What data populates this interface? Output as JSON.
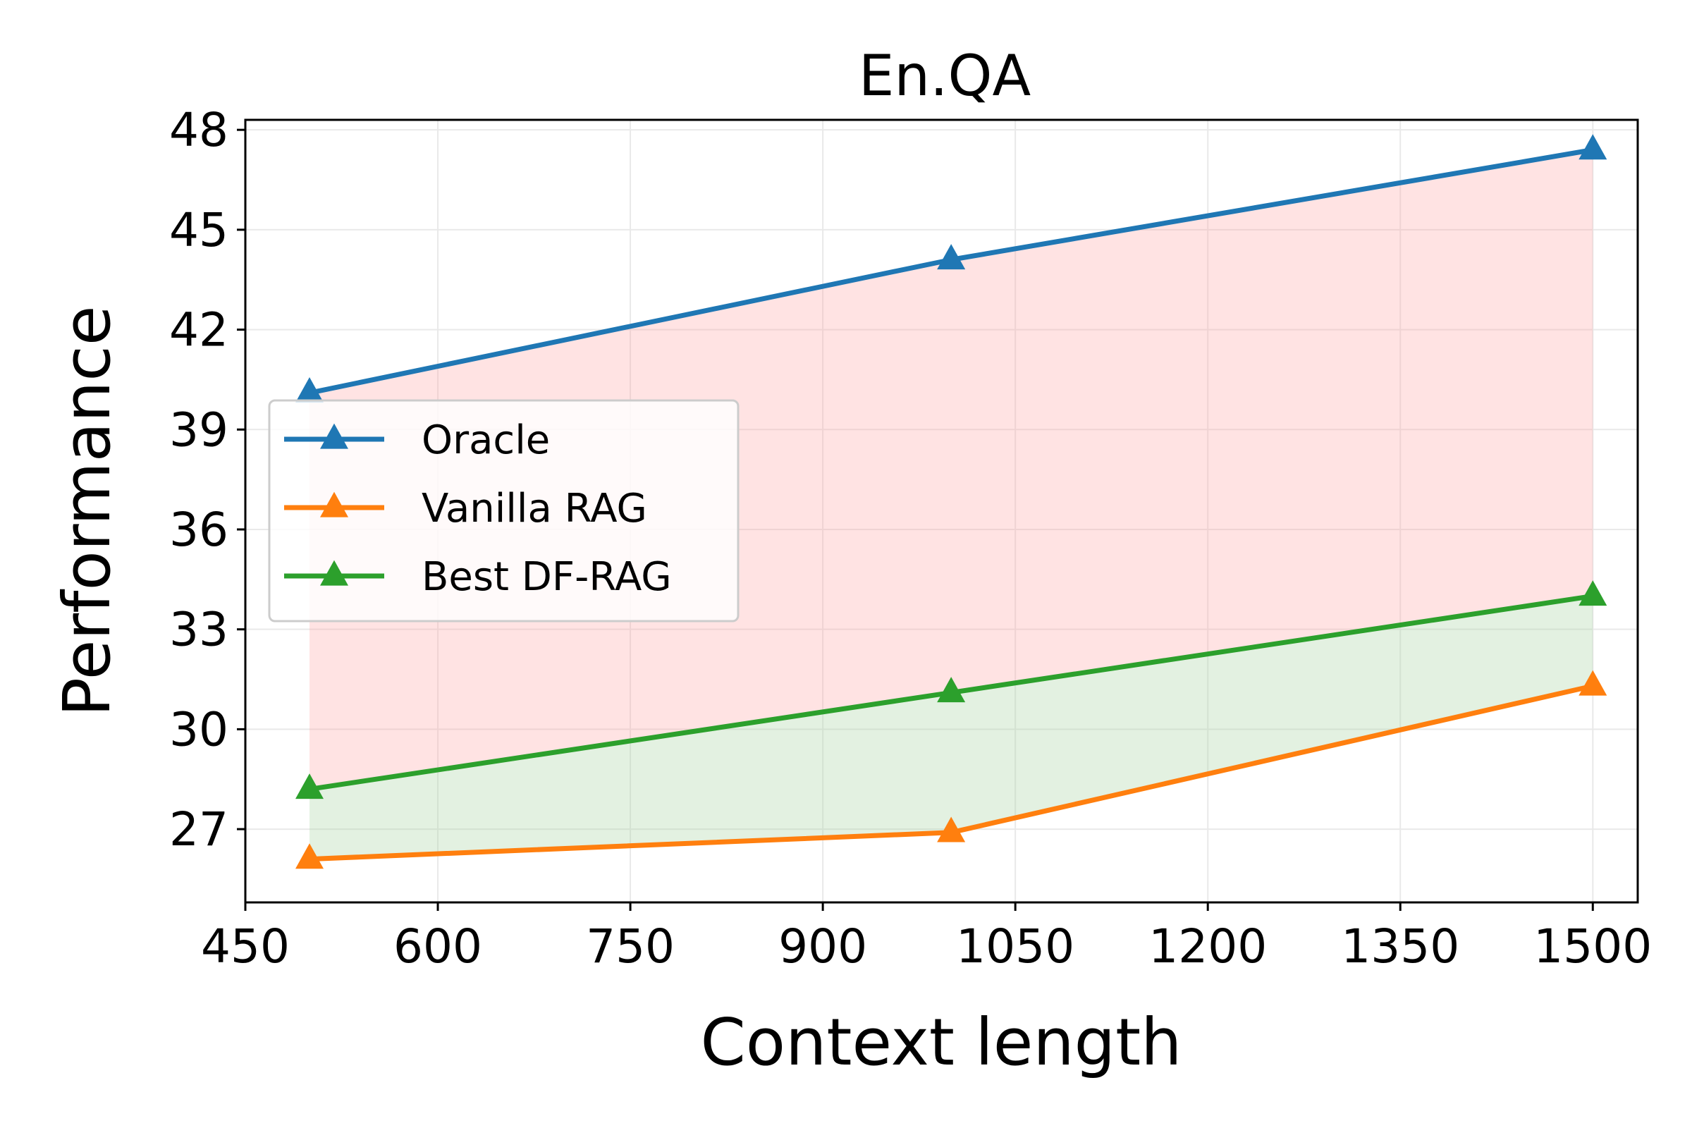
{
  "chart_data": {
    "type": "line",
    "title": "En.QA",
    "xlabel": "Context length",
    "ylabel": "Performance",
    "xlim": [
      450,
      1535
    ],
    "ylim": [
      24.8,
      48.3
    ],
    "xticks": [
      450,
      600,
      750,
      900,
      1050,
      1200,
      1350,
      1500
    ],
    "xtick_labels": [
      "450",
      "600",
      "750",
      "900",
      "1050",
      "1200",
      "1350",
      "1500"
    ],
    "yticks": [
      27,
      30,
      33,
      36,
      39,
      42,
      45,
      48
    ],
    "ytick_labels": [
      "27",
      "30",
      "33",
      "36",
      "39",
      "42",
      "45",
      "48"
    ],
    "grid": true,
    "legend_position": "center-left",
    "x": [
      500,
      1000,
      1500
    ],
    "series": [
      {
        "name": "Oracle",
        "values": [
          40.1,
          44.1,
          47.4
        ],
        "color": "#1f77b4",
        "marker": "triangle-up"
      },
      {
        "name": "Vanilla RAG",
        "values": [
          26.1,
          26.9,
          31.3
        ],
        "color": "#ff7f0e",
        "marker": "triangle-up"
      },
      {
        "name": "Best DF-RAG",
        "values": [
          28.2,
          31.1,
          34.0
        ],
        "color": "#2ca02c",
        "marker": "triangle-up"
      }
    ],
    "fills": [
      {
        "between": [
          "Best DF-RAG",
          "Oracle"
        ],
        "color": "#ff9999",
        "opacity": 0.28
      },
      {
        "between": [
          "Vanilla RAG",
          "Best DF-RAG"
        ],
        "color": "#a8d5a2",
        "opacity": 0.32
      }
    ]
  }
}
